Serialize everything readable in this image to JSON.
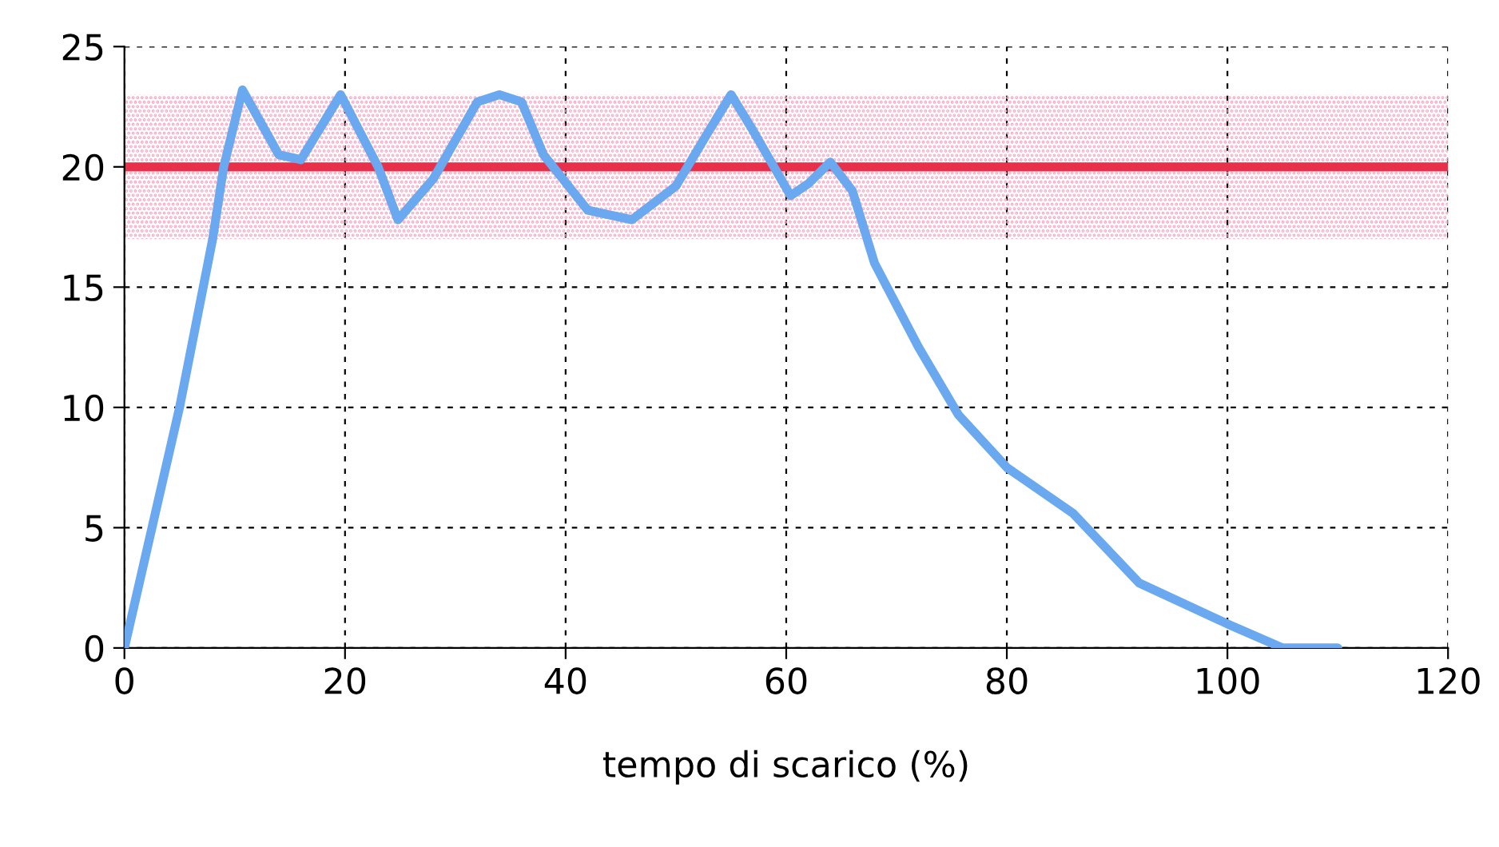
{
  "chart_data": {
    "type": "line",
    "xlabel": "tempo di scarico (%)",
    "x": [
      0,
      5,
      8,
      9,
      10.7,
      14,
      16,
      19.6,
      23,
      24.8,
      28,
      32,
      34,
      36,
      38,
      42,
      46,
      50,
      53,
      55,
      57,
      60.4,
      62,
      64,
      66,
      68,
      72,
      75.6,
      80,
      86,
      92,
      100,
      105,
      110
    ],
    "series": [
      {
        "color": "#6aa8f0",
        "values": [
          0,
          10,
          17,
          20,
          23.2,
          20.5,
          20.3,
          23,
          20,
          17.8,
          19.5,
          22.7,
          23,
          22.7,
          20.5,
          18.2,
          17.8,
          19.2,
          21.5,
          23,
          21.5,
          18.8,
          19.3,
          20.2,
          19,
          16,
          12.5,
          9.7,
          7.5,
          5.6,
          2.7,
          1,
          0,
          0
        ]
      }
    ],
    "xlim": [
      0,
      120
    ],
    "xticks": [
      0,
      20,
      40,
      60,
      80,
      100,
      120
    ],
    "ylim": [
      0,
      25
    ],
    "yticks": [
      0,
      5,
      10,
      15,
      20,
      25
    ],
    "grid": true,
    "marker": "none",
    "line_style": "solid",
    "ref_lines": [
      {
        "axis": "y",
        "value": 20,
        "label": null,
        "color": "#e8304a"
      }
    ],
    "bands": [
      {
        "axis": "y",
        "from": 17,
        "to": 23,
        "label": null,
        "color": "#f7a8c4"
      }
    ]
  }
}
